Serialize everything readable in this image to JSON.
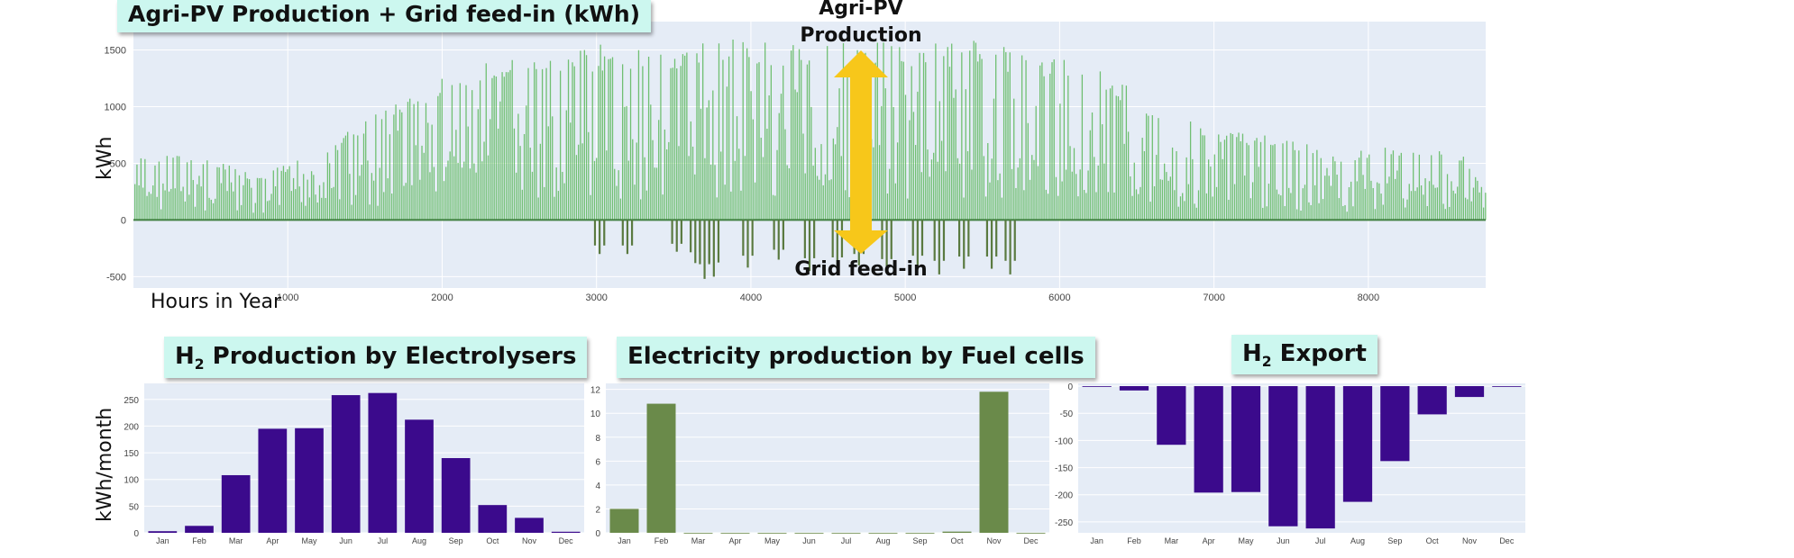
{
  "main": {
    "title": "Agri-PV Production + Grid feed-in (kWh)",
    "ylabel": "kWh",
    "xlabel": "Hours in Year",
    "annotation_production": "Agri-PV\nProduction",
    "annotation_feedin": "Grid feed-in",
    "arrow_color": "#f7c71a",
    "bar_color": "#5cb85c"
  },
  "bottom": {
    "ylabel": "kWh/month",
    "titles": {
      "electrolysers": "H",
      "electrolysers_sub": "2",
      "electrolysers_rest": " Production by Electrolysers",
      "fuelcells": "Electricity production by Fuel cells",
      "export": "H",
      "export_sub": "2",
      "export_rest": " Export"
    }
  },
  "colors": {
    "purple": "#3b0a8c",
    "green": "#6a8a4a",
    "plot_bg": "#e5ecf6",
    "title_bg": "#ccf7ef"
  },
  "chart_data": [
    {
      "type": "bar",
      "title": "Agri-PV Production + Grid feed-in (kWh)",
      "xlabel": "Hours in Year",
      "ylabel": "kWh",
      "xlim": [
        0,
        8760
      ],
      "ylim": [
        -600,
        1750
      ],
      "xticks": [
        1000,
        2000,
        3000,
        4000,
        5000,
        6000,
        7000,
        8000
      ],
      "yticks": [
        -500,
        0,
        500,
        1000,
        1500
      ],
      "grid": true,
      "series": [
        {
          "name": "Agri-PV Production",
          "envelope_x": [
            0,
            400,
            800,
            1200,
            1600,
            2000,
            2400,
            2800,
            3000,
            3400,
            3800,
            4200,
            4600,
            5000,
            5400,
            5800,
            6200,
            6600,
            7000,
            7400,
            7800,
            8200,
            8600,
            8760
          ],
          "envelope_y": [
            550,
            580,
            400,
            600,
            1000,
            1250,
            1450,
            1450,
            1550,
            1500,
            1650,
            1550,
            1600,
            1550,
            1600,
            1500,
            1400,
            1050,
            800,
            750,
            600,
            650,
            600,
            250
          ]
        },
        {
          "name": "Grid feed-in",
          "x": [
            3020,
            3200,
            3520,
            3640,
            3700,
            3760,
            3980,
            4180,
            4380,
            4560,
            4700,
            4880,
            5080,
            5220,
            5380,
            5560,
            5680
          ],
          "y": [
            -300,
            -300,
            -280,
            -380,
            -520,
            -500,
            -420,
            -350,
            -450,
            -440,
            -400,
            -460,
            -420,
            -480,
            -430,
            -430,
            -480
          ]
        }
      ]
    },
    {
      "type": "bar",
      "title": "H2 Production by Electrolysers",
      "ylabel": "kWh/month",
      "categories": [
        "Jan",
        "Feb",
        "Mar",
        "Apr",
        "May",
        "Jun",
        "Jul",
        "Aug",
        "Sep",
        "Oct",
        "Nov",
        "Dec"
      ],
      "values": [
        3,
        13,
        108,
        195,
        196,
        258,
        262,
        212,
        140,
        52,
        28,
        2
      ],
      "ylim": [
        0,
        280
      ],
      "yticks": [
        0,
        50,
        100,
        150,
        200,
        250
      ]
    },
    {
      "type": "bar",
      "title": "Electricity production by Fuel cells",
      "categories": [
        "Jan",
        "Feb",
        "Mar",
        "Apr",
        "May",
        "Jun",
        "Jul",
        "Aug",
        "Sep",
        "Oct",
        "Nov",
        "Dec"
      ],
      "values": [
        2,
        10.8,
        0,
        0,
        0,
        0,
        0,
        0,
        0,
        0.1,
        11.8,
        0
      ],
      "ylim": [
        0,
        12.5
      ],
      "yticks": [
        0,
        2,
        4,
        6,
        8,
        10,
        12
      ]
    },
    {
      "type": "bar",
      "title": "H2 Export",
      "categories": [
        "Jan",
        "Feb",
        "Mar",
        "Apr",
        "May",
        "Jun",
        "Jul",
        "Aug",
        "Sep",
        "Oct",
        "Nov",
        "Dec"
      ],
      "values": [
        0,
        -8,
        -108,
        -196,
        -195,
        -258,
        -262,
        -213,
        -138,
        -52,
        -20,
        0
      ],
      "ylim": [
        -270,
        5
      ],
      "yticks": [
        -250,
        -200,
        -150,
        -100,
        -50,
        0
      ]
    }
  ]
}
